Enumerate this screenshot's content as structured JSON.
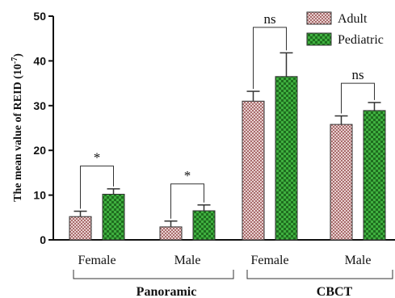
{
  "chart_data": {
    "type": "bar",
    "ylabel_main": "The mean value of REID (10",
    "ylabel_sup": "-7",
    "ylabel_close": ")",
    "ylim": [
      0,
      50
    ],
    "yticks": [
      0,
      10,
      20,
      30,
      40,
      50
    ],
    "categories": [
      "Female",
      "Male",
      "Female",
      "Male"
    ],
    "groups": [
      {
        "label": "Panoramic",
        "categories": [
          0,
          1
        ]
      },
      {
        "label": "CBCT",
        "categories": [
          2,
          3
        ]
      }
    ],
    "series": [
      {
        "name": "Adult",
        "values": [
          5.2,
          2.9,
          31.0,
          25.8
        ],
        "errors": [
          1.2,
          1.3,
          2.2,
          1.9
        ],
        "color": "#c9a0a0"
      },
      {
        "name": "Pediatric",
        "values": [
          10.2,
          6.5,
          36.5,
          28.9
        ],
        "errors": [
          1.2,
          1.3,
          5.3,
          1.8
        ],
        "color": "#2e8b2e"
      }
    ],
    "legend_position": "top-right",
    "annotations": [
      {
        "category": 0,
        "text": "*",
        "at": 16.5
      },
      {
        "category": 1,
        "text": "*",
        "at": 12.5
      },
      {
        "category": 2,
        "text": "ns",
        "at": 47.5
      },
      {
        "category": 3,
        "text": "ns",
        "at": 35.0
      }
    ]
  }
}
